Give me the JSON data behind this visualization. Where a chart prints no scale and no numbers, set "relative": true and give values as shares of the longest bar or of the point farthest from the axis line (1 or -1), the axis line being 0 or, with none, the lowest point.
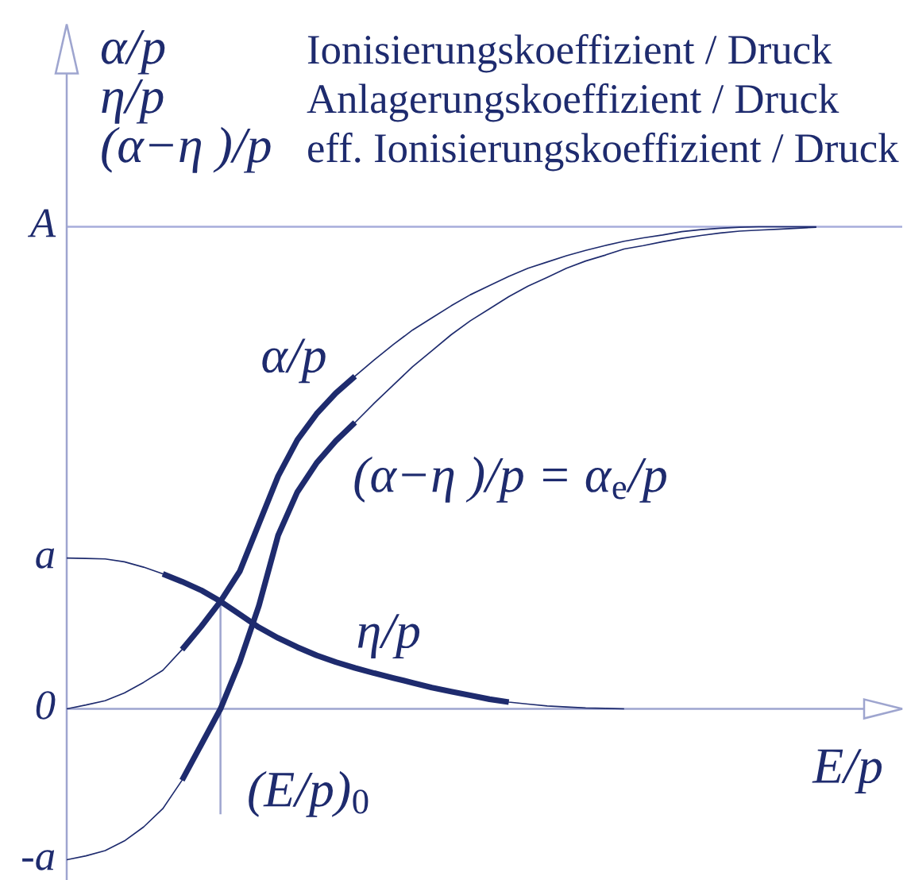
{
  "chart_data": {
    "type": "line",
    "relative": true,
    "xlabel": "E/p",
    "annotations": [
      "α/p",
      "Ionisierungskoeffizient / Druck",
      "η/p",
      "Anlagerungskoeffizient / Druck",
      "(α−η )/p",
      "eff. Ionisierungskoeffizient / Druck",
      "A",
      "a",
      "0",
      "-a",
      "(E/p)$_{0}$"
    ],
    "categories": [
      null,
      null,
      null,
      null,
      null,
      null,
      null,
      null,
      null,
      null,
      null,
      null,
      null,
      null,
      null,
      null,
      null,
      null,
      null,
      null,
      null,
      null,
      null,
      null,
      null,
      null,
      null,
      null,
      null,
      null,
      null,
      null,
      null,
      null,
      null,
      null,
      null,
      null,
      null,
      null
    ],
    "ref_lines": [
      {
        "axis": "y",
        "value": 1,
        "color": "#a7addb"
      },
      {
        "axis": "y",
        "value": 0,
        "color": "#9ea5cf"
      }
    ],
    "series": [
      {
        "name": "α/p",
        "color": "#1e2b6e",
        "values": [
          0.0,
          0.008,
          0.017,
          0.033,
          0.055,
          0.08,
          0.123,
          0.171,
          0.223,
          0.285,
          0.384,
          0.483,
          0.558,
          0.612,
          0.655,
          0.69,
          0.724,
          0.756,
          0.786,
          0.811,
          0.836,
          0.859,
          0.878,
          0.897,
          0.914,
          0.927,
          0.94,
          0.951,
          0.961,
          0.97,
          0.977,
          0.983,
          0.99,
          0.994,
          0.997,
          0.999,
          1.0,
          1.0,
          1.0,
          1.0
        ]
      },
      {
        "name": "(α−η )/p = α$_{e}$/p",
        "color": "#1e2b6e",
        "values": [
          -0.313,
          -0.305,
          -0.294,
          -0.274,
          -0.245,
          -0.207,
          -0.148,
          -0.074,
          0.0,
          0.097,
          0.214,
          0.36,
          0.45,
          0.51,
          0.556,
          0.594,
          0.634,
          0.672,
          0.71,
          0.743,
          0.776,
          0.805,
          0.83,
          0.855,
          0.877,
          0.895,
          0.914,
          0.929,
          0.941,
          0.954,
          0.961,
          0.969,
          0.976,
          0.982,
          0.987,
          0.991,
          0.993,
          0.995,
          0.997,
          0.999
        ]
      },
      {
        "name": "η/p",
        "color": "#1e2b6e",
        "values": [
          0.313,
          0.312,
          0.311,
          0.305,
          0.294,
          0.28,
          0.264,
          0.246,
          0.223,
          0.196,
          0.169,
          0.147,
          0.128,
          0.111,
          0.097,
          0.085,
          0.074,
          0.064,
          0.054,
          0.044,
          0.036,
          0.028,
          0.02,
          0.014,
          0.01,
          0.006,
          0.004,
          0.002,
          0.001,
          0.0,
          null,
          null,
          null,
          null,
          null,
          null,
          null,
          null,
          null,
          null
        ]
      },
      {
        "color": "#1e2b6e",
        "values": [
          null,
          null,
          null,
          null,
          null,
          null,
          0.123,
          0.171,
          0.223,
          0.285,
          0.384,
          0.483,
          0.558,
          0.612,
          0.655,
          0.69,
          null,
          null,
          null,
          null,
          null,
          null,
          null,
          null,
          null,
          null,
          null,
          null,
          null,
          null,
          null,
          null,
          null,
          null,
          null,
          null,
          null,
          null,
          null,
          null
        ]
      },
      {
        "color": "#1e2b6e",
        "values": [
          null,
          null,
          null,
          null,
          null,
          null,
          -0.148,
          -0.074,
          0.0,
          0.097,
          0.214,
          0.36,
          0.45,
          0.51,
          0.556,
          0.594,
          null,
          null,
          null,
          null,
          null,
          null,
          null,
          null,
          null,
          null,
          null,
          null,
          null,
          null,
          null,
          null,
          null,
          null,
          null,
          null,
          null,
          null,
          null,
          null
        ]
      },
      {
        "color": "#1e2b6e",
        "values": [
          null,
          null,
          null,
          null,
          null,
          0.28,
          0.264,
          0.246,
          0.223,
          0.196,
          0.169,
          0.147,
          0.128,
          0.111,
          0.097,
          0.085,
          0.074,
          0.064,
          0.054,
          0.044,
          0.036,
          0.028,
          0.02,
          0.014,
          null,
          null,
          null,
          null,
          null,
          null,
          null,
          null,
          null,
          null,
          null,
          null,
          null,
          null,
          null,
          null
        ]
      }
    ]
  }
}
